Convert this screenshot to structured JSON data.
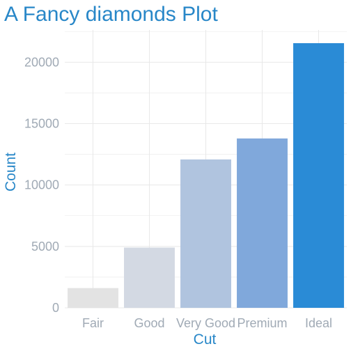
{
  "chart_data": {
    "type": "bar",
    "title": "A Fancy diamonds Plot",
    "xlabel": "Cut",
    "ylabel": "Count",
    "categories": [
      "Fair",
      "Good",
      "Very Good",
      "Premium",
      "Ideal"
    ],
    "values": [
      1610,
      4906,
      12082,
      13791,
      21551
    ],
    "ylim": [
      0,
      22627
    ],
    "yticks": [
      0,
      5000,
      10000,
      15000,
      20000
    ],
    "grid": true,
    "legend": "none",
    "bar_colors": [
      "#e3e3e3",
      "#d3d9e3",
      "#b0c4df",
      "#80a8db",
      "#2a8bd6"
    ]
  },
  "colors": {
    "title": "#2887c8",
    "axis_title": "#2887c8",
    "tick_label": "#a0aab5",
    "grid": "#e8e8e8"
  }
}
